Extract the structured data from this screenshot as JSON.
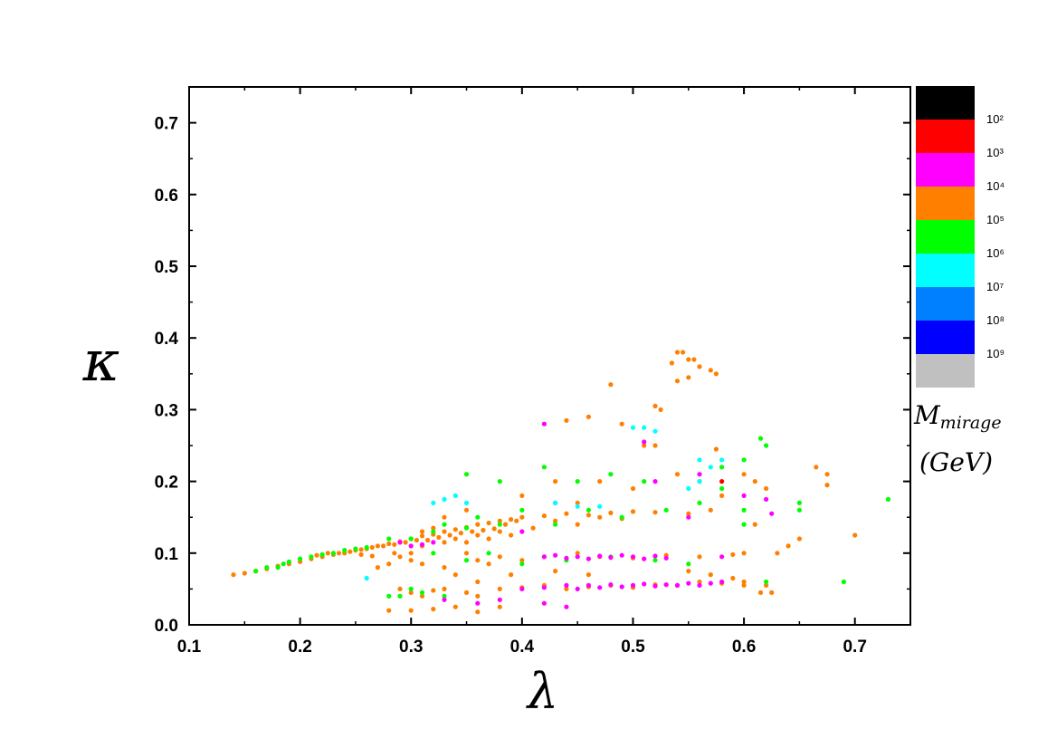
{
  "chart_data": {
    "type": "scatter",
    "title": "",
    "xlabel": "λ",
    "ylabel": "κ",
    "xlim": [
      0.1,
      0.75
    ],
    "ylim": [
      0.0,
      0.75
    ],
    "xticks": [
      "0.1",
      "0.2",
      "0.3",
      "0.4",
      "0.5",
      "0.6",
      "0.7"
    ],
    "yticks": [
      "0.0",
      "0.1",
      "0.2",
      "0.3",
      "0.4",
      "0.5",
      "0.6",
      "0.7"
    ],
    "grid": false,
    "colorbar": {
      "title_line1": "M",
      "title_sub": "mirage",
      "title_line2": "(GeV)",
      "bins": [
        {
          "color": "#000000",
          "label": "10²"
        },
        {
          "color": "#ff0000",
          "label": "10³"
        },
        {
          "color": "#ff00ff",
          "label": "10⁴"
        },
        {
          "color": "#ff8000",
          "label": "10⁵"
        },
        {
          "color": "#00ff00",
          "label": "10⁶"
        },
        {
          "color": "#00ffff",
          "label": "10⁷"
        },
        {
          "color": "#0080ff",
          "label": "10⁸"
        },
        {
          "color": "#0000ff",
          "label": "10⁹"
        },
        {
          "color": "#c0c0c0",
          "label": ""
        }
      ]
    },
    "series": [
      {
        "color": "#ff8000",
        "points": [
          [
            0.14,
            0.07
          ],
          [
            0.15,
            0.072
          ],
          [
            0.16,
            0.075
          ],
          [
            0.17,
            0.078
          ],
          [
            0.18,
            0.082
          ],
          [
            0.19,
            0.085
          ],
          [
            0.2,
            0.088
          ],
          [
            0.21,
            0.092
          ],
          [
            0.22,
            0.095
          ],
          [
            0.23,
            0.098
          ],
          [
            0.24,
            0.1
          ],
          [
            0.25,
            0.104
          ],
          [
            0.26,
            0.106
          ],
          [
            0.27,
            0.11
          ],
          [
            0.28,
            0.113
          ],
          [
            0.29,
            0.116
          ],
          [
            0.3,
            0.12
          ],
          [
            0.31,
            0.124
          ],
          [
            0.32,
            0.126
          ],
          [
            0.33,
            0.13
          ],
          [
            0.34,
            0.133
          ],
          [
            0.35,
            0.136
          ],
          [
            0.36,
            0.14
          ],
          [
            0.37,
            0.142
          ],
          [
            0.38,
            0.145
          ],
          [
            0.39,
            0.147
          ],
          [
            0.4,
            0.15
          ],
          [
            0.42,
            0.152
          ],
          [
            0.44,
            0.155
          ],
          [
            0.46,
            0.153
          ],
          [
            0.48,
            0.156
          ],
          [
            0.5,
            0.158
          ],
          [
            0.52,
            0.157
          ],
          [
            0.55,
            0.155
          ],
          [
            0.57,
            0.16
          ],
          [
            0.215,
            0.097
          ],
          [
            0.225,
            0.1
          ],
          [
            0.235,
            0.1
          ],
          [
            0.245,
            0.102
          ],
          [
            0.255,
            0.105
          ],
          [
            0.265,
            0.108
          ],
          [
            0.275,
            0.11
          ],
          [
            0.285,
            0.112
          ],
          [
            0.295,
            0.115
          ],
          [
            0.305,
            0.118
          ],
          [
            0.315,
            0.118
          ],
          [
            0.325,
            0.122
          ],
          [
            0.335,
            0.125
          ],
          [
            0.345,
            0.128
          ],
          [
            0.355,
            0.13
          ],
          [
            0.365,
            0.132
          ],
          [
            0.375,
            0.134
          ],
          [
            0.385,
            0.14
          ],
          [
            0.395,
            0.145
          ],
          [
            0.3,
            0.09
          ],
          [
            0.31,
            0.085
          ],
          [
            0.33,
            0.08
          ],
          [
            0.35,
            0.1
          ],
          [
            0.36,
            0.09
          ],
          [
            0.37,
            0.085
          ],
          [
            0.38,
            0.095
          ],
          [
            0.4,
            0.09
          ],
          [
            0.42,
            0.095
          ],
          [
            0.45,
            0.1
          ],
          [
            0.47,
            0.095
          ],
          [
            0.5,
            0.093
          ],
          [
            0.53,
            0.097
          ],
          [
            0.56,
            0.095
          ],
          [
            0.59,
            0.098
          ],
          [
            0.6,
            0.1
          ],
          [
            0.29,
            0.05
          ],
          [
            0.3,
            0.045
          ],
          [
            0.31,
            0.04
          ],
          [
            0.32,
            0.048
          ],
          [
            0.33,
            0.05
          ],
          [
            0.35,
            0.045
          ],
          [
            0.36,
            0.04
          ],
          [
            0.38,
            0.05
          ],
          [
            0.4,
            0.052
          ],
          [
            0.42,
            0.055
          ],
          [
            0.44,
            0.05
          ],
          [
            0.46,
            0.053
          ],
          [
            0.48,
            0.055
          ],
          [
            0.5,
            0.052
          ],
          [
            0.52,
            0.056
          ],
          [
            0.54,
            0.055
          ],
          [
            0.56,
            0.06
          ],
          [
            0.58,
            0.058
          ],
          [
            0.6,
            0.06
          ],
          [
            0.62,
            0.055
          ],
          [
            0.625,
            0.045
          ],
          [
            0.28,
            0.02
          ],
          [
            0.3,
            0.02
          ],
          [
            0.32,
            0.022
          ],
          [
            0.34,
            0.025
          ],
          [
            0.36,
            0.018
          ],
          [
            0.38,
            0.025
          ],
          [
            0.54,
            0.38
          ],
          [
            0.545,
            0.38
          ],
          [
            0.55,
            0.37
          ],
          [
            0.555,
            0.37
          ],
          [
            0.56,
            0.36
          ],
          [
            0.57,
            0.355
          ],
          [
            0.575,
            0.35
          ],
          [
            0.54,
            0.34
          ],
          [
            0.55,
            0.345
          ],
          [
            0.535,
            0.365
          ],
          [
            0.48,
            0.335
          ],
          [
            0.52,
            0.305
          ],
          [
            0.525,
            0.3
          ],
          [
            0.49,
            0.28
          ],
          [
            0.44,
            0.285
          ],
          [
            0.46,
            0.29
          ],
          [
            0.51,
            0.25
          ],
          [
            0.52,
            0.25
          ],
          [
            0.575,
            0.245
          ],
          [
            0.6,
            0.21
          ],
          [
            0.61,
            0.2
          ],
          [
            0.62,
            0.19
          ],
          [
            0.665,
            0.22
          ],
          [
            0.675,
            0.21
          ],
          [
            0.675,
            0.195
          ],
          [
            0.7,
            0.125
          ],
          [
            0.65,
            0.12
          ],
          [
            0.63,
            0.1
          ],
          [
            0.64,
            0.11
          ],
          [
            0.61,
            0.14
          ],
          [
            0.58,
            0.18
          ],
          [
            0.56,
            0.2
          ],
          [
            0.54,
            0.21
          ],
          [
            0.5,
            0.19
          ],
          [
            0.47,
            0.2
          ],
          [
            0.45,
            0.17
          ],
          [
            0.43,
            0.2
          ],
          [
            0.4,
            0.18
          ],
          [
            0.35,
            0.16
          ],
          [
            0.33,
            0.15
          ],
          [
            0.27,
            0.08
          ],
          [
            0.28,
            0.085
          ],
          [
            0.29,
            0.095
          ],
          [
            0.3,
            0.1
          ],
          [
            0.31,
            0.11
          ],
          [
            0.34,
            0.07
          ],
          [
            0.36,
            0.06
          ],
          [
            0.39,
            0.07
          ],
          [
            0.43,
            0.075
          ],
          [
            0.46,
            0.07
          ],
          [
            0.55,
            0.075
          ],
          [
            0.57,
            0.07
          ],
          [
            0.59,
            0.065
          ],
          [
            0.6,
            0.055
          ],
          [
            0.615,
            0.045
          ],
          [
            0.255,
            0.098
          ],
          [
            0.265,
            0.096
          ],
          [
            0.285,
            0.1
          ],
          [
            0.31,
            0.13
          ],
          [
            0.32,
            0.135
          ],
          [
            0.33,
            0.115
          ],
          [
            0.34,
            0.12
          ],
          [
            0.35,
            0.115
          ],
          [
            0.36,
            0.125
          ],
          [
            0.37,
            0.12
          ],
          [
            0.38,
            0.13
          ],
          [
            0.39,
            0.125
          ],
          [
            0.41,
            0.135
          ],
          [
            0.43,
            0.145
          ],
          [
            0.45,
            0.14
          ],
          [
            0.47,
            0.15
          ],
          [
            0.49,
            0.148
          ]
        ]
      },
      {
        "color": "#00ff00",
        "points": [
          [
            0.16,
            0.075
          ],
          [
            0.17,
            0.08
          ],
          [
            0.18,
            0.08
          ],
          [
            0.185,
            0.085
          ],
          [
            0.19,
            0.088
          ],
          [
            0.2,
            0.092
          ],
          [
            0.21,
            0.095
          ],
          [
            0.22,
            0.098
          ],
          [
            0.23,
            0.1
          ],
          [
            0.24,
            0.104
          ],
          [
            0.25,
            0.106
          ],
          [
            0.26,
            0.108
          ],
          [
            0.28,
            0.12
          ],
          [
            0.3,
            0.12
          ],
          [
            0.32,
            0.13
          ],
          [
            0.33,
            0.14
          ],
          [
            0.35,
            0.135
          ],
          [
            0.36,
            0.15
          ],
          [
            0.38,
            0.14
          ],
          [
            0.4,
            0.16
          ],
          [
            0.43,
            0.14
          ],
          [
            0.46,
            0.16
          ],
          [
            0.49,
            0.15
          ],
          [
            0.53,
            0.16
          ],
          [
            0.56,
            0.17
          ],
          [
            0.6,
            0.14
          ],
          [
            0.29,
            0.04
          ],
          [
            0.3,
            0.05
          ],
          [
            0.31,
            0.045
          ],
          [
            0.33,
            0.04
          ],
          [
            0.28,
            0.04
          ],
          [
            0.32,
            0.1
          ],
          [
            0.35,
            0.09
          ],
          [
            0.37,
            0.1
          ],
          [
            0.4,
            0.085
          ],
          [
            0.44,
            0.09
          ],
          [
            0.48,
            0.095
          ],
          [
            0.52,
            0.09
          ],
          [
            0.55,
            0.085
          ],
          [
            0.615,
            0.26
          ],
          [
            0.62,
            0.25
          ],
          [
            0.6,
            0.23
          ],
          [
            0.58,
            0.22
          ],
          [
            0.65,
            0.17
          ],
          [
            0.65,
            0.16
          ],
          [
            0.69,
            0.06
          ],
          [
            0.73,
            0.175
          ],
          [
            0.62,
            0.06
          ],
          [
            0.6,
            0.16
          ],
          [
            0.58,
            0.19
          ],
          [
            0.35,
            0.21
          ],
          [
            0.38,
            0.2
          ],
          [
            0.42,
            0.22
          ],
          [
            0.45,
            0.2
          ],
          [
            0.48,
            0.21
          ],
          [
            0.51,
            0.2
          ]
        ]
      },
      {
        "color": "#ff00ff",
        "points": [
          [
            0.29,
            0.115
          ],
          [
            0.3,
            0.11
          ],
          [
            0.31,
            0.112
          ],
          [
            0.32,
            0.115
          ],
          [
            0.42,
            0.095
          ],
          [
            0.43,
            0.097
          ],
          [
            0.44,
            0.093
          ],
          [
            0.45,
            0.095
          ],
          [
            0.46,
            0.092
          ],
          [
            0.47,
            0.096
          ],
          [
            0.48,
            0.094
          ],
          [
            0.49,
            0.097
          ],
          [
            0.5,
            0.095
          ],
          [
            0.51,
            0.092
          ],
          [
            0.52,
            0.096
          ],
          [
            0.53,
            0.093
          ],
          [
            0.58,
            0.095
          ],
          [
            0.4,
            0.05
          ],
          [
            0.42,
            0.052
          ],
          [
            0.44,
            0.055
          ],
          [
            0.45,
            0.05
          ],
          [
            0.46,
            0.055
          ],
          [
            0.47,
            0.052
          ],
          [
            0.48,
            0.056
          ],
          [
            0.49,
            0.053
          ],
          [
            0.5,
            0.055
          ],
          [
            0.51,
            0.057
          ],
          [
            0.52,
            0.054
          ],
          [
            0.53,
            0.056
          ],
          [
            0.54,
            0.055
          ],
          [
            0.55,
            0.058
          ],
          [
            0.56,
            0.055
          ],
          [
            0.57,
            0.058
          ],
          [
            0.58,
            0.06
          ],
          [
            0.36,
            0.03
          ],
          [
            0.38,
            0.035
          ],
          [
            0.42,
            0.03
          ],
          [
            0.44,
            0.025
          ],
          [
            0.33,
            0.035
          ],
          [
            0.42,
            0.28
          ],
          [
            0.51,
            0.255
          ],
          [
            0.4,
            0.13
          ],
          [
            0.43,
            0.17
          ],
          [
            0.52,
            0.2
          ],
          [
            0.55,
            0.15
          ],
          [
            0.56,
            0.21
          ],
          [
            0.6,
            0.18
          ],
          [
            0.62,
            0.175
          ],
          [
            0.625,
            0.155
          ]
        ]
      },
      {
        "color": "#00ffff",
        "points": [
          [
            0.26,
            0.065
          ],
          [
            0.32,
            0.17
          ],
          [
            0.33,
            0.175
          ],
          [
            0.34,
            0.18
          ],
          [
            0.35,
            0.17
          ],
          [
            0.43,
            0.17
          ],
          [
            0.45,
            0.165
          ],
          [
            0.47,
            0.165
          ],
          [
            0.5,
            0.275
          ],
          [
            0.51,
            0.275
          ],
          [
            0.52,
            0.27
          ],
          [
            0.56,
            0.23
          ],
          [
            0.57,
            0.22
          ],
          [
            0.58,
            0.23
          ],
          [
            0.56,
            0.2
          ],
          [
            0.55,
            0.19
          ]
        ]
      },
      {
        "color": "#ff0000",
        "points": [
          [
            0.58,
            0.2
          ]
        ]
      }
    ]
  }
}
